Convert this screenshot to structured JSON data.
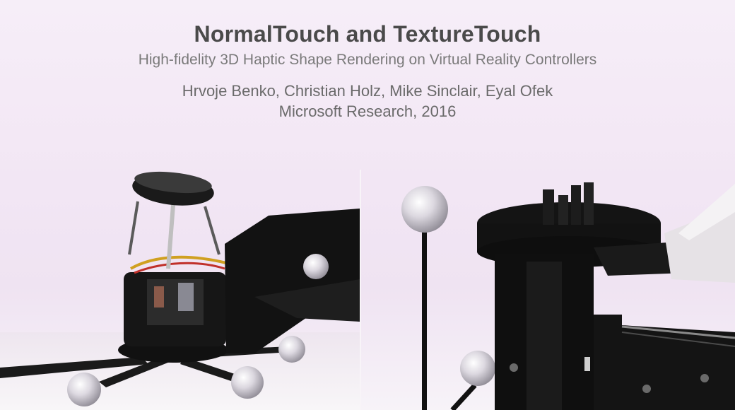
{
  "slide": {
    "title": "NormalTouch and TextureTouch",
    "subtitle": "High-fidelity 3D Haptic Shape Rendering on Virtual Reality Controllers",
    "authors": "Hrvoje Benko, Christian Holz, Mike Sinclair, Eyal Ofek",
    "affiliation": "Microsoft Research, 2016"
  },
  "photos": {
    "left": "normaltouch-device",
    "right": "texturetouch-device"
  },
  "colors": {
    "background": "#f2e6f4",
    "device_black": "#141414",
    "marker_sphere": "#d8d4dc",
    "text": "#5b5b5b"
  }
}
